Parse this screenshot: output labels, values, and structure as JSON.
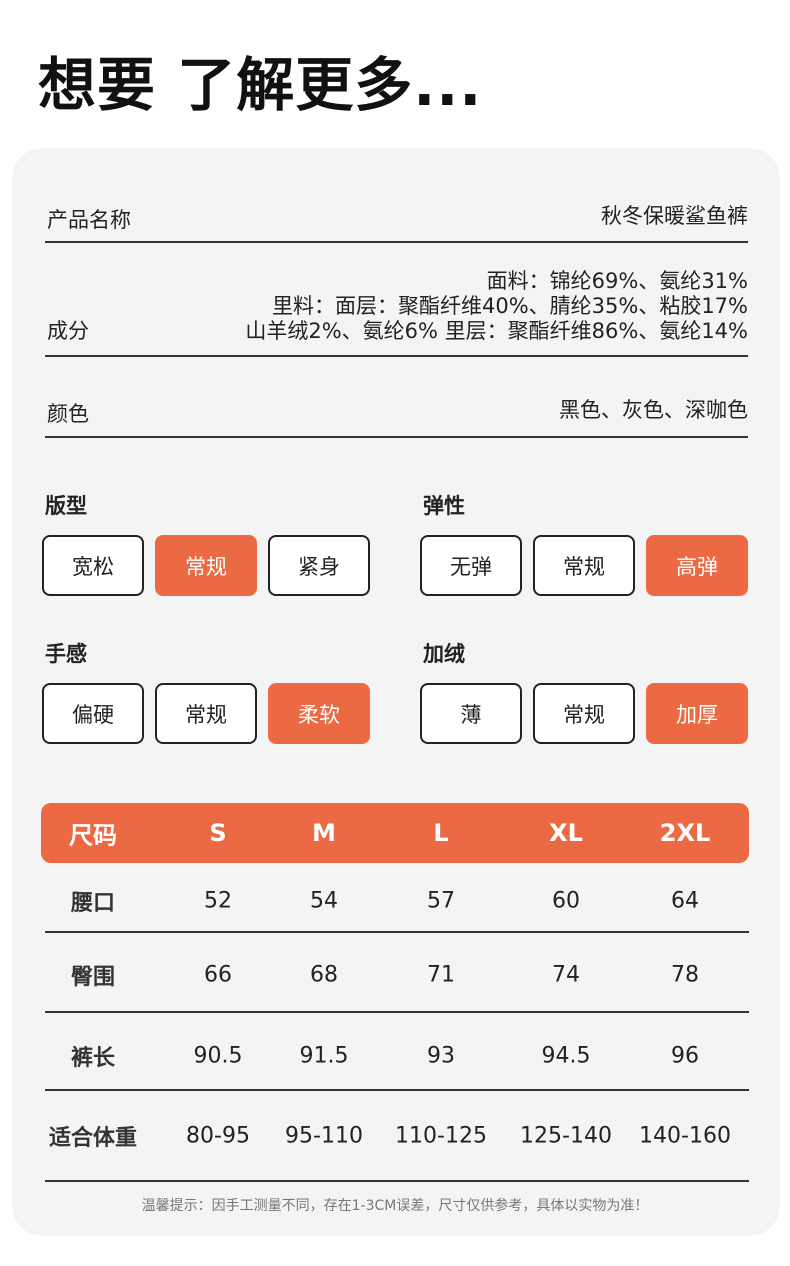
{
  "title": "想要 了解更多...",
  "info": {
    "name_label": "产品名称",
    "name_value": "秋冬保暖鲨鱼裤",
    "comp_label": "成分",
    "comp_lines": [
      "面料：锦纶69%、氨纶31%",
      "里料：面层：聚酯纤维40%、腈纶35%、粘胶17%",
      "山羊绒2%、氨纶6% 里层：聚酯纤维86%、氨纶14%"
    ],
    "color_label": "颜色",
    "color_value": "黑色、灰色、深咖色"
  },
  "attributes": [
    {
      "label": "版型",
      "options": [
        "宽松",
        "常规",
        "紧身"
      ],
      "selected": 1
    },
    {
      "label": "弹性",
      "options": [
        "无弹",
        "常规",
        "高弹"
      ],
      "selected": 2
    },
    {
      "label": "手感",
      "options": [
        "偏硬",
        "常规",
        "柔软"
      ],
      "selected": 2
    },
    {
      "label": "加绒",
      "options": [
        "薄",
        "常规",
        "加厚"
      ],
      "selected": 2
    }
  ],
  "accent_color": "#ec6a43",
  "size_table": {
    "headers": [
      "尺码",
      "S",
      "M",
      "L",
      "XL",
      "2XL"
    ],
    "rows": [
      [
        "腰口",
        "52",
        "54",
        "57",
        "60",
        "64"
      ],
      [
        "臀围",
        "66",
        "68",
        "71",
        "74",
        "78"
      ],
      [
        "裤长",
        "90.5",
        "91.5",
        "93",
        "94.5",
        "96"
      ],
      [
        "适合体重",
        "80-95",
        "95-110",
        "110-125",
        "125-140",
        "140-160"
      ]
    ]
  },
  "note": "温馨提示：因手工测量不同，存在1-3CM误差，尺寸仅供参考，具体以实物为准！"
}
